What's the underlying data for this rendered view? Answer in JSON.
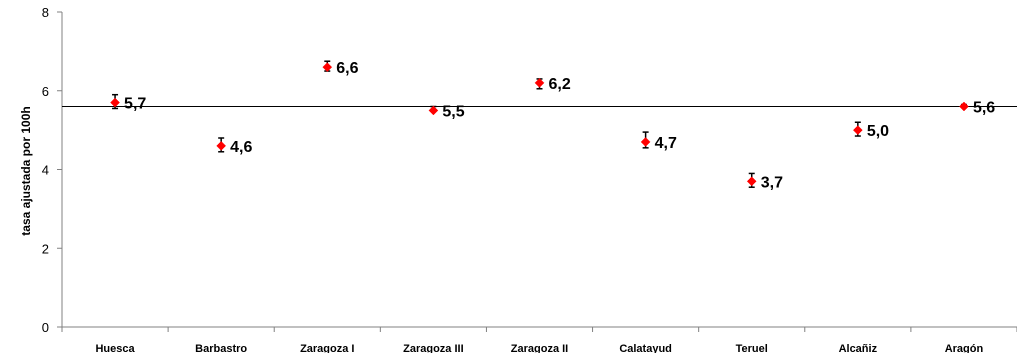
{
  "chart_data": {
    "type": "scatter",
    "ylabel": "tasa ajustada  por 100h",
    "xlabel": "",
    "ylim": [
      0,
      8
    ],
    "yticks": [
      0,
      2,
      4,
      6,
      8
    ],
    "grid": false,
    "categories": [
      "Huesca",
      "Barbastro",
      "Zaragoza I",
      "Zaragoza III",
      "Zaragoza II",
      "Calatayud",
      "Teruel",
      "Alcañiz",
      "Aragón"
    ],
    "values": [
      5.7,
      4.6,
      6.6,
      5.5,
      6.2,
      4.7,
      3.7,
      5.0,
      5.6
    ],
    "value_labels": [
      "5,7",
      "4,6",
      "6,6",
      "5,5",
      "6,2",
      "4,7",
      "3,7",
      "5,0",
      "5,6"
    ],
    "error_low": [
      5.55,
      4.45,
      6.5,
      5.48,
      6.05,
      4.55,
      3.55,
      4.85,
      5.58
    ],
    "error_high": [
      5.9,
      4.8,
      6.75,
      5.6,
      6.3,
      4.95,
      3.9,
      5.2,
      5.65
    ],
    "reference_line": 5.6,
    "colors": {
      "marker": "#ff0000",
      "error_bar": "#000000",
      "reference_line": "#000000"
    }
  }
}
